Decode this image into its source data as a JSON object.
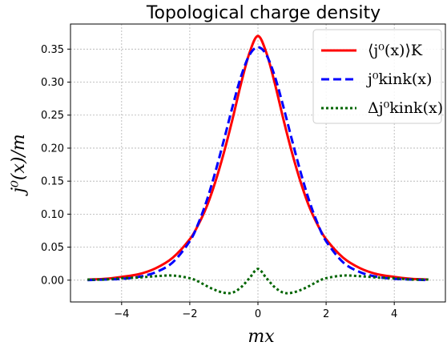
{
  "chart_data": {
    "type": "line",
    "title": "Topological charge density",
    "xlabel": "mx",
    "ylabel": "j⁰(x)/m",
    "xlim": [
      -5.5,
      5.5
    ],
    "ylim": [
      -0.033,
      0.388
    ],
    "xticks": [
      -4,
      -2,
      0,
      2,
      4
    ],
    "xtick_labels": [
      "−4",
      "−2",
      "0",
      "2",
      "4"
    ],
    "yticks": [
      0.0,
      0.05,
      0.1,
      0.15,
      0.2,
      0.25,
      0.3,
      0.35
    ],
    "ytick_labels": [
      "0.00",
      "0.05",
      "0.10",
      "0.15",
      "0.20",
      "0.25",
      "0.30",
      "0.35"
    ],
    "grid": true,
    "legend_position": "top-right",
    "series": [
      {
        "name": "⟨j⁰(x)⟩K",
        "color": "#ff0000",
        "style": "solid",
        "x": [
          -5,
          -4.5,
          -4,
          -3.5,
          -3,
          -2.5,
          -2,
          -1.75,
          -1.5,
          -1.25,
          -1,
          -0.75,
          -0.5,
          -0.25,
          0,
          0.25,
          0.5,
          0.75,
          1,
          1.25,
          1.5,
          1.75,
          2,
          2.5,
          3,
          3.5,
          4,
          4.5,
          5
        ],
        "y": [
          0.001,
          0.002,
          0.005,
          0.009,
          0.018,
          0.034,
          0.062,
          0.084,
          0.112,
          0.149,
          0.193,
          0.243,
          0.297,
          0.344,
          0.37,
          0.344,
          0.297,
          0.243,
          0.193,
          0.149,
          0.112,
          0.084,
          0.062,
          0.034,
          0.018,
          0.009,
          0.005,
          0.002,
          0.001
        ]
      },
      {
        "name": "j⁰kink(x)",
        "color": "#0000ff",
        "style": "dashed",
        "x": [
          -5,
          -4.5,
          -4,
          -3.5,
          -3,
          -2.5,
          -2,
          -1.75,
          -1.5,
          -1.25,
          -1,
          -0.75,
          -0.5,
          -0.25,
          0,
          0.25,
          0.5,
          0.75,
          1,
          1.25,
          1.5,
          1.75,
          2,
          2.5,
          3,
          3.5,
          4,
          4.5,
          5
        ],
        "y": [
          0.0,
          0.001,
          0.002,
          0.005,
          0.012,
          0.027,
          0.059,
          0.086,
          0.121,
          0.164,
          0.212,
          0.262,
          0.308,
          0.341,
          0.353,
          0.341,
          0.308,
          0.262,
          0.212,
          0.164,
          0.121,
          0.086,
          0.059,
          0.027,
          0.012,
          0.005,
          0.002,
          0.001,
          0.0
        ]
      },
      {
        "name": "Δj⁰kink(x)",
        "color": "#006400",
        "style": "dotted",
        "x": [
          -5,
          -4.5,
          -4,
          -3.5,
          -3,
          -2.5,
          -2,
          -1.75,
          -1.5,
          -1.25,
          -1,
          -0.75,
          -0.5,
          -0.25,
          0,
          0.25,
          0.5,
          0.75,
          1,
          1.25,
          1.5,
          1.75,
          2,
          2.5,
          3,
          3.5,
          4,
          4.5,
          5
        ],
        "y": [
          0.001,
          0.001,
          0.003,
          0.004,
          0.006,
          0.007,
          0.003,
          -0.002,
          -0.009,
          -0.015,
          -0.019,
          -0.019,
          -0.011,
          0.003,
          0.017,
          0.003,
          -0.011,
          -0.019,
          -0.019,
          -0.015,
          -0.009,
          -0.002,
          0.003,
          0.007,
          0.006,
          0.004,
          0.003,
          0.001,
          0.001
        ]
      }
    ]
  }
}
